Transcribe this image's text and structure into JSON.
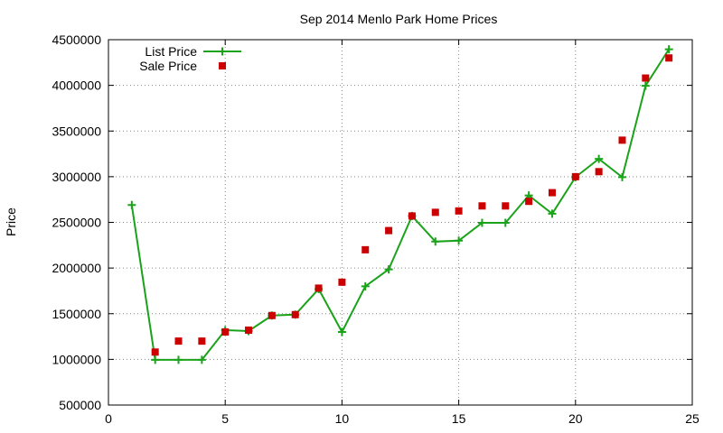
{
  "chart_data": {
    "type": "line",
    "title": "Sep 2014 Menlo Park Home Prices",
    "xlabel": "",
    "ylabel": "Price",
    "xlim": [
      0,
      25
    ],
    "ylim": [
      500000,
      4500000
    ],
    "xticks": [
      0,
      5,
      10,
      15,
      20,
      25
    ],
    "yticks": [
      500000,
      1000000,
      1500000,
      2000000,
      2500000,
      3000000,
      3500000,
      4000000,
      4500000
    ],
    "grid": true,
    "legend_position": "top-left",
    "series": [
      {
        "name": "List Price",
        "style": "line+points",
        "marker": "plus",
        "color": "#1aa31a",
        "points": [
          [
            1,
            2690000
          ],
          [
            2,
            995000
          ],
          [
            3,
            995000
          ],
          [
            4,
            995000
          ],
          [
            5,
            1320000
          ],
          [
            6,
            1310000
          ],
          [
            7,
            1480000
          ],
          [
            8,
            1490000
          ],
          [
            9,
            1770000
          ],
          [
            10,
            1300000
          ],
          [
            11,
            1800000
          ],
          [
            12,
            1985000
          ],
          [
            13,
            2570000
          ],
          [
            14,
            2290000
          ],
          [
            15,
            2300000
          ],
          [
            16,
            2495000
          ],
          [
            17,
            2495000
          ],
          [
            18,
            2795000
          ],
          [
            19,
            2595000
          ],
          [
            20,
            2995000
          ],
          [
            21,
            3195000
          ],
          [
            22,
            2995000
          ],
          [
            23,
            3995000
          ],
          [
            24,
            4395000
          ]
        ]
      },
      {
        "name": "Sale Price",
        "style": "points",
        "marker": "square",
        "color": "#cc0000",
        "points": [
          [
            2,
            1080000
          ],
          [
            3,
            1200000
          ],
          [
            4,
            1200000
          ],
          [
            5,
            1300000
          ],
          [
            6,
            1320000
          ],
          [
            7,
            1480000
          ],
          [
            8,
            1490000
          ],
          [
            9,
            1780000
          ],
          [
            10,
            1845000
          ],
          [
            11,
            2200000
          ],
          [
            12,
            2410000
          ],
          [
            13,
            2570000
          ],
          [
            14,
            2610000
          ],
          [
            15,
            2625000
          ],
          [
            16,
            2680000
          ],
          [
            17,
            2680000
          ],
          [
            18,
            2730000
          ],
          [
            19,
            2825000
          ],
          [
            20,
            3000000
          ],
          [
            21,
            3055000
          ],
          [
            22,
            3400000
          ],
          [
            23,
            4080000
          ],
          [
            24,
            4300000
          ]
        ]
      }
    ]
  }
}
